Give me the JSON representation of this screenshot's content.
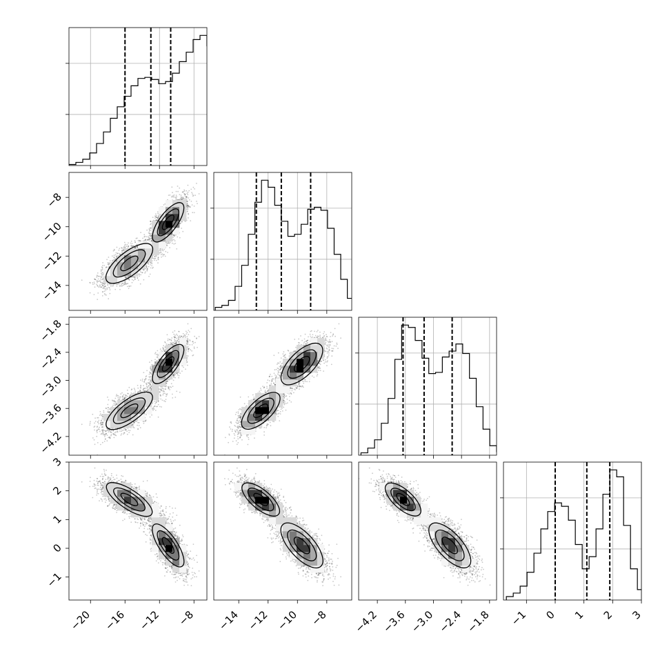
{
  "chart_data": {
    "type": "corner",
    "parameters": [
      {
        "ticks": [
          "−20",
          "−16",
          "−12",
          "−8"
        ],
        "tick_values": [
          -20,
          -16,
          -12,
          -8
        ],
        "range": [
          -22.5,
          -6.5
        ],
        "quantiles": [
          -16.0,
          -13.0,
          -10.7
        ]
      },
      {
        "ticks": [
          "−14",
          "−12",
          "−10",
          "−8"
        ],
        "tick_values": [
          -14,
          -12,
          -10,
          -8
        ],
        "range": [
          -15.7,
          -6.3
        ],
        "quantiles": [
          -12.8,
          -11.1,
          -9.1
        ]
      },
      {
        "ticks": [
          "−4.2",
          "−3.6",
          "−3.0",
          "−2.4",
          "−1.8"
        ],
        "tick_values": [
          -4.2,
          -3.6,
          -3.0,
          -2.4,
          -1.8
        ],
        "range": [
          -4.6,
          -1.65
        ],
        "quantiles": [
          -3.65,
          -3.2,
          -2.6
        ]
      },
      {
        "ticks": [
          "−1",
          "0",
          "1",
          "2",
          "3"
        ],
        "tick_values": [
          -1,
          0,
          1,
          2,
          3
        ],
        "range": [
          -1.8,
          3.0
        ],
        "quantiles": [
          0.0,
          1.1,
          1.9
        ]
      }
    ],
    "histograms": [
      {
        "bin_start": -22.5,
        "bin_width": 0.8,
        "counts": [
          0.1,
          0.3,
          0.6,
          1.2,
          2.1,
          3.2,
          4.5,
          5.6,
          6.6,
          7.6,
          8.3,
          8.4,
          8.2,
          7.8,
          8.0,
          8.8,
          9.9,
          10.8,
          12.0,
          12.4,
          11.4,
          9.3,
          6.7,
          4.4,
          2.3,
          0.9,
          0.3,
          0.1,
          0.0,
          0.0
        ]
      },
      {
        "bin_start": -15.6,
        "bin_width": 0.45,
        "counts": [
          0.3,
          0.5,
          1.0,
          2.4,
          4.5,
          7.6,
          10.8,
          13.0,
          12.3,
          10.5,
          8.9,
          7.4,
          7.6,
          8.6,
          10.1,
          10.3,
          10.0,
          8.2,
          5.6,
          3.1,
          1.2,
          0.5,
          0.2,
          0.1
        ]
      },
      {
        "bin_start": -4.55,
        "bin_width": 0.145,
        "counts": [
          0.2,
          0.6,
          1.3,
          2.7,
          4.8,
          8.1,
          11.0,
          10.8,
          9.7,
          8.2,
          6.9,
          7.0,
          8.3,
          8.8,
          9.4,
          8.6,
          6.5,
          4.1,
          2.2,
          0.8,
          0.3,
          0.1
        ]
      },
      {
        "bin_start": -1.7,
        "bin_width": 0.24,
        "counts": [
          0.2,
          0.4,
          0.8,
          1.6,
          2.7,
          4.1,
          5.1,
          5.6,
          5.4,
          4.6,
          3.2,
          1.8,
          2.5,
          4.1,
          6.1,
          7.5,
          7.1,
          4.3,
          1.8,
          0.6,
          0.1
        ]
      }
    ],
    "modes": [
      {
        "weight": 0.45,
        "mean": [
          -15.5,
          -12.5,
          -3.65,
          1.7
        ],
        "sd": [
          1.6,
          0.75,
          0.22,
          0.32
        ]
      },
      {
        "weight": 0.55,
        "mean": [
          -11.0,
          -9.7,
          -2.65,
          0.1
        ],
        "sd": [
          1.0,
          0.8,
          0.25,
          0.45
        ]
      }
    ],
    "contour_levels": [
      "1σ",
      "2σ",
      "3σ"
    ],
    "grid": true
  }
}
